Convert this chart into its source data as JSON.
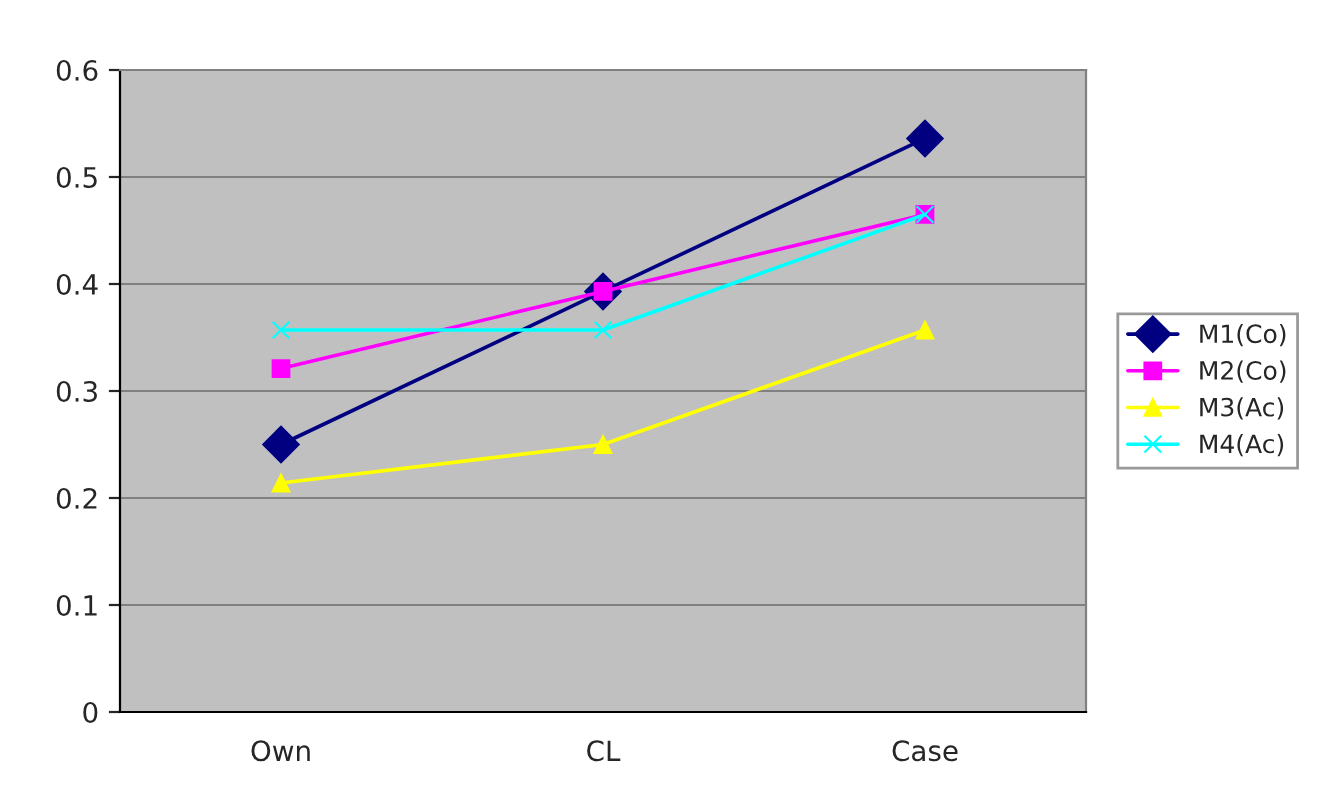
{
  "chart_data": {
    "type": "line",
    "categories": [
      "Own",
      "CL",
      "Case"
    ],
    "ylim": [
      0,
      0.6
    ],
    "yticks": [
      0,
      0.1,
      0.2,
      0.3,
      0.4,
      0.5,
      0.6
    ],
    "grid": "y",
    "legend": "right",
    "series": [
      {
        "name": "M1(Co)",
        "color": "#000080",
        "marker": "diamond",
        "values": [
          0.25,
          0.393,
          0.536
        ]
      },
      {
        "name": "M2(Co)",
        "color": "#ff00ff",
        "marker": "square",
        "values": [
          0.321,
          0.393,
          0.465
        ]
      },
      {
        "name": "M3(Ac)",
        "color": "#ffff00",
        "marker": "triangle",
        "values": [
          0.214,
          0.25,
          0.357
        ]
      },
      {
        "name": "M4(Ac)",
        "color": "#00ffff",
        "marker": "cross",
        "values": [
          0.357,
          0.357,
          0.465
        ]
      }
    ]
  }
}
